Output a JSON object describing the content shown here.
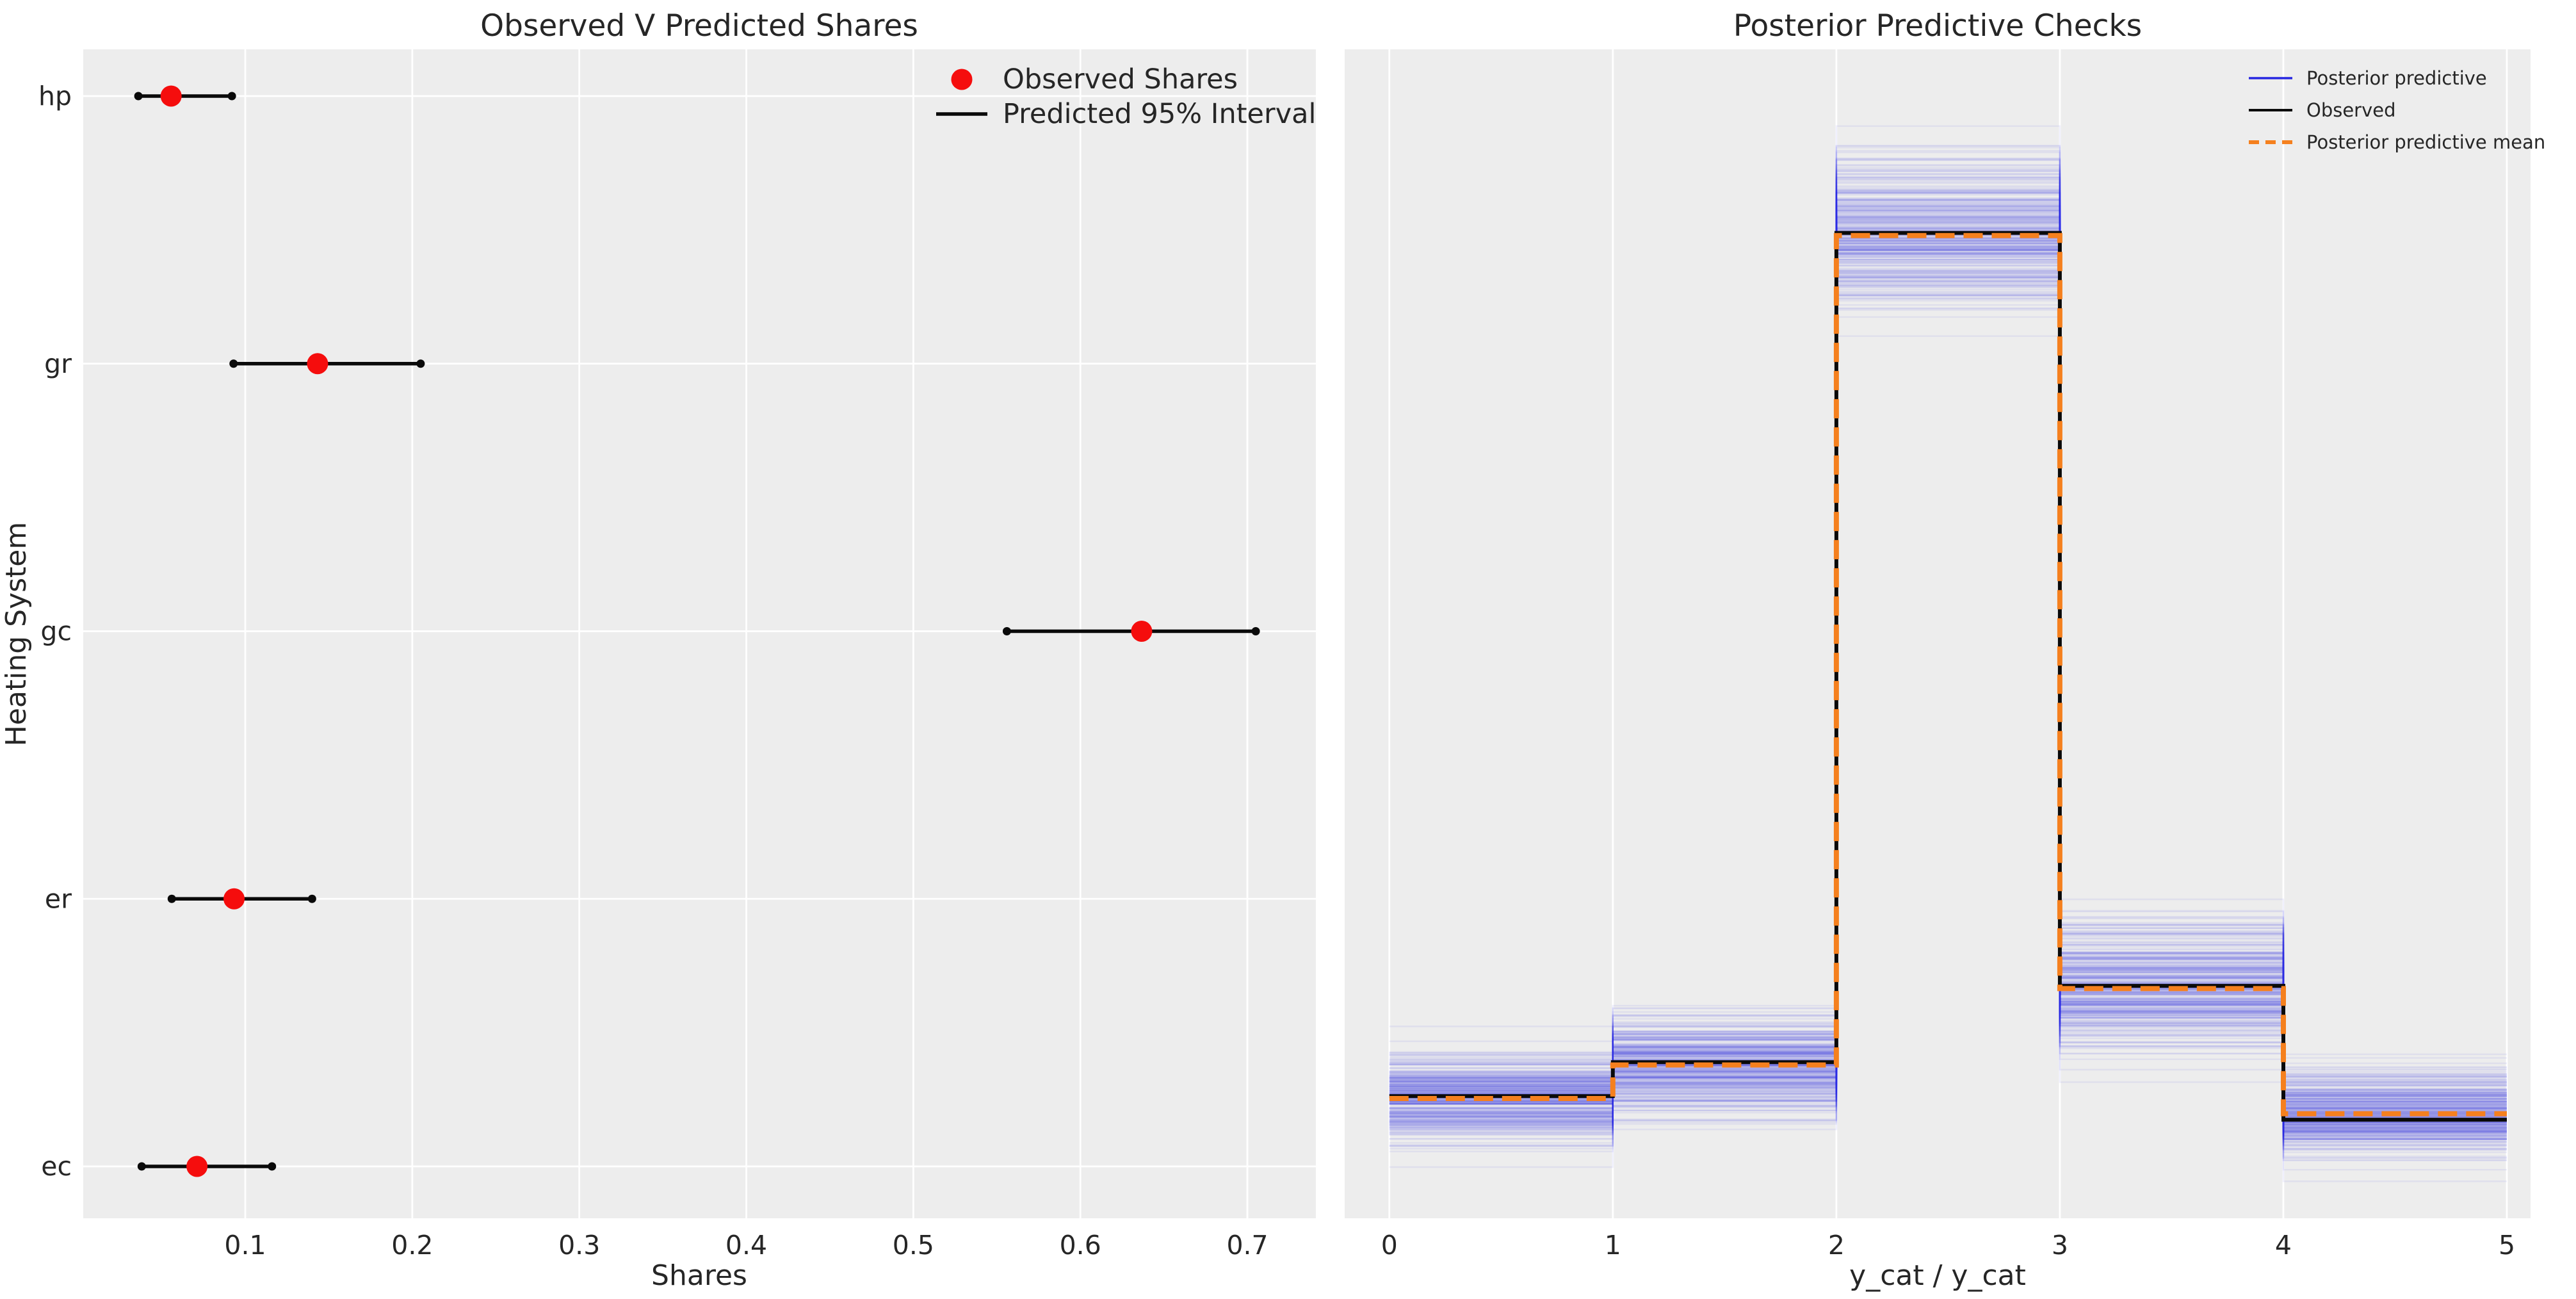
{
  "figure": {
    "background": "#ffffff",
    "panel_background": "#ededed",
    "grid_color": "#ffffff",
    "text_color": "#262626"
  },
  "chart_data": [
    {
      "type": "scatter",
      "id": "observed-vs-predicted-shares",
      "title": "Observed V Predicted Shares",
      "xlabel": "Shares",
      "ylabel": "Heating System",
      "categories": [
        "hp",
        "gr",
        "gc",
        "er",
        "ec"
      ],
      "observed_shares": [
        0.0556,
        0.1433,
        0.6367,
        0.0933,
        0.0711
      ],
      "predicted_95_interval": [
        [
          0.036,
          0.092
        ],
        [
          0.093,
          0.205
        ],
        [
          0.556,
          0.705
        ],
        [
          0.056,
          0.14
        ],
        [
          0.038,
          0.116
        ]
      ],
      "xticks": [
        0.1,
        0.2,
        0.3,
        0.4,
        0.5,
        0.6,
        0.7
      ],
      "xtick_labels": [
        "0.1",
        "0.2",
        "0.3",
        "0.4",
        "0.5",
        "0.6",
        "0.7"
      ],
      "xlim": [
        0.003,
        0.741
      ],
      "grid": true,
      "dot_color": "#f50d0d",
      "interval_color": "#0a0a0a",
      "legend": {
        "position": "upper right",
        "entries": [
          {
            "label": "Observed Shares",
            "marker": "circle",
            "color": "#f50d0d"
          },
          {
            "label": "Predicted 95% Interval",
            "marker": "line",
            "color": "#0a0a0a"
          }
        ]
      }
    },
    {
      "type": "step-histogram-ppc",
      "id": "posterior-predictive-checks",
      "title": "Posterior Predictive Checks",
      "xlabel": "y_cat / y_cat",
      "bin_edges": [
        0,
        1,
        2,
        3,
        4,
        5
      ],
      "observed_proportions": [
        0.0711,
        0.0933,
        0.6367,
        0.1433,
        0.0556
      ],
      "posterior_predictive_mean": [
        0.0695,
        0.0915,
        0.635,
        0.1415,
        0.0595
      ],
      "posterior_predictive_spread_sd": [
        0.0143,
        0.0165,
        0.0265,
        0.021,
        0.0135
      ],
      "n_posterior_draws": 300,
      "xticks": [
        0,
        1,
        2,
        3,
        4,
        5
      ],
      "xtick_labels": [
        "0",
        "1",
        "2",
        "3",
        "4",
        "5"
      ],
      "xlim": [
        -0.2,
        5.106
      ],
      "ylim": [
        -0.009,
        0.757
      ],
      "grid": "vertical-only",
      "draw_color": "#2727e1",
      "observed_color": "#0a0a0a",
      "mean_color": "#f5801e",
      "legend": {
        "position": "upper right",
        "entries": [
          {
            "label": "Posterior predictive",
            "style": "solid",
            "color": "#2727e1"
          },
          {
            "label": "Observed",
            "style": "solid",
            "color": "#0a0a0a"
          },
          {
            "label": "Posterior predictive mean",
            "style": "dashed",
            "color": "#f5801e"
          }
        ]
      }
    }
  ]
}
